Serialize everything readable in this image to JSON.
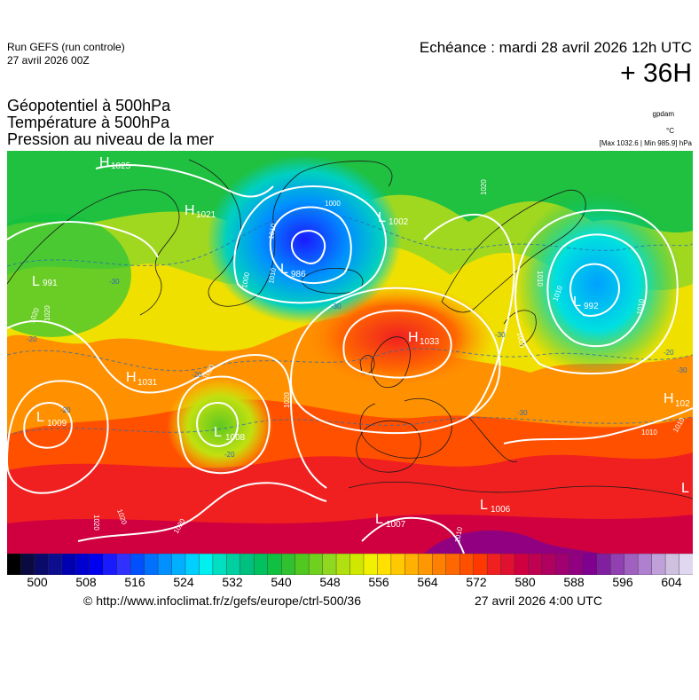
{
  "header": {
    "run_name": "Run GEFS (run controle)",
    "run_date": "27 avril 2026 00Z",
    "valid_time": "Echéance : mardi 28 avril 2026 12h UTC",
    "lead_time": "+ 36H"
  },
  "parameters": [
    "Géopotentiel à 500hPa",
    "Température à 500hPa",
    "Pression au niveau de la mer"
  ],
  "units": {
    "geopotential": "gpdam",
    "temperature": "°C",
    "pressure_minmax": "[Max 1032.6 | Min 985.9] hPa"
  },
  "map": {
    "pressure_centers": [
      {
        "type": "H",
        "value": "1025"
      },
      {
        "type": "H",
        "value": "1021"
      },
      {
        "type": "L",
        "value": "986"
      },
      {
        "type": "L",
        "value": "1002"
      },
      {
        "type": "L",
        "value": "991"
      },
      {
        "type": "H",
        "value": "1033"
      },
      {
        "type": "L",
        "value": "992"
      },
      {
        "type": "H",
        "value": "1031"
      },
      {
        "type": "L",
        "value": "1009"
      },
      {
        "type": "L",
        "value": "1008"
      },
      {
        "type": "L",
        "value": "1007"
      },
      {
        "type": "L",
        "value": "1006"
      },
      {
        "type": "H",
        "value": "102"
      },
      {
        "type": "L",
        "value": ""
      }
    ],
    "isobar_labels": [
      "1000",
      "1010",
      "1010",
      "1000",
      "1020",
      "1020",
      "1020",
      "1020",
      "1020",
      "1020",
      "1020",
      "1010",
      "1010",
      "1010",
      "1000",
      "1010",
      "1010",
      "1010",
      "1020"
    ],
    "temperature_labels": [
      "-30",
      "-20",
      "-30",
      "-20",
      "-20",
      "-20",
      "-20",
      "-30",
      "-30",
      "-30"
    ],
    "palette": {
      "deep_blue": "#1a1aff",
      "blue": "#00a0ff",
      "cyan": "#00e0e0",
      "green": "#10c040",
      "light_green": "#90d020",
      "yellow": "#f0f000",
      "orange": "#ff9000",
      "red": "#f02020",
      "dark_red": "#c00030",
      "purple": "#8000a0"
    }
  },
  "colorbar": {
    "colors": [
      "#000000",
      "#0a0a40",
      "#0a0a6a",
      "#0d0d90",
      "#0000b0",
      "#0000d0",
      "#0000f0",
      "#1a1aff",
      "#3030ff",
      "#0050ff",
      "#0070ff",
      "#0090ff",
      "#00b0ff",
      "#00d0ff",
      "#00f0f0",
      "#00e0c0",
      "#00d0a0",
      "#00c080",
      "#00c060",
      "#10c040",
      "#30c030",
      "#50c820",
      "#70d020",
      "#90d820",
      "#b0e010",
      "#d0e800",
      "#f0f000",
      "#ffe000",
      "#ffc800",
      "#ffb000",
      "#ff9800",
      "#ff8000",
      "#ff6800",
      "#ff5000",
      "#ff3800",
      "#f02020",
      "#e01030",
      "#d00040",
      "#c00050",
      "#b00060",
      "#a00070",
      "#900080",
      "#800090",
      "#8020a0",
      "#9040b0",
      "#a060c0",
      "#b080d0",
      "#c0a0d8",
      "#d0c0e0",
      "#e0d8f0"
    ],
    "ticks": [
      "500",
      "508",
      "516",
      "524",
      "532",
      "540",
      "548",
      "556",
      "564",
      "572",
      "580",
      "588",
      "596",
      "604"
    ]
  },
  "footer": {
    "credit": "© http://www.infoclimat.fr/z/gefs/europe/ctrl-500/36",
    "generated": "27 avril 2026  4:00 UTC"
  }
}
